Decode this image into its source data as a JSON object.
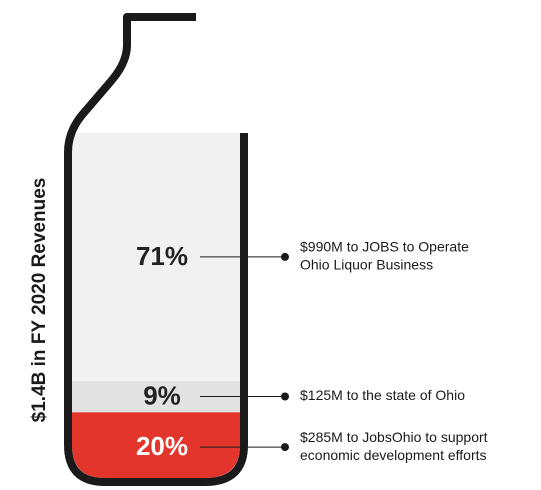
{
  "chart_data": {
    "type": "bottle",
    "title": "$1.4B in FY 2020 Revenues",
    "categories": [
      [
        "$990M to JOBS to Operate",
        "Ohio Liquor Business"
      ],
      [
        "$125M to the state of Ohio"
      ],
      [
        "$285M to JobsOhio to support",
        "economic development efforts"
      ]
    ],
    "values": [
      71,
      9,
      20
    ],
    "value_labels": [
      "71%",
      "9%",
      "20%"
    ],
    "colors": [
      "#f1f1f1",
      "#e2e2e2",
      "#e3352b"
    ],
    "label_colors": [
      "#222222",
      "#222222",
      "#ffffff"
    ]
  }
}
